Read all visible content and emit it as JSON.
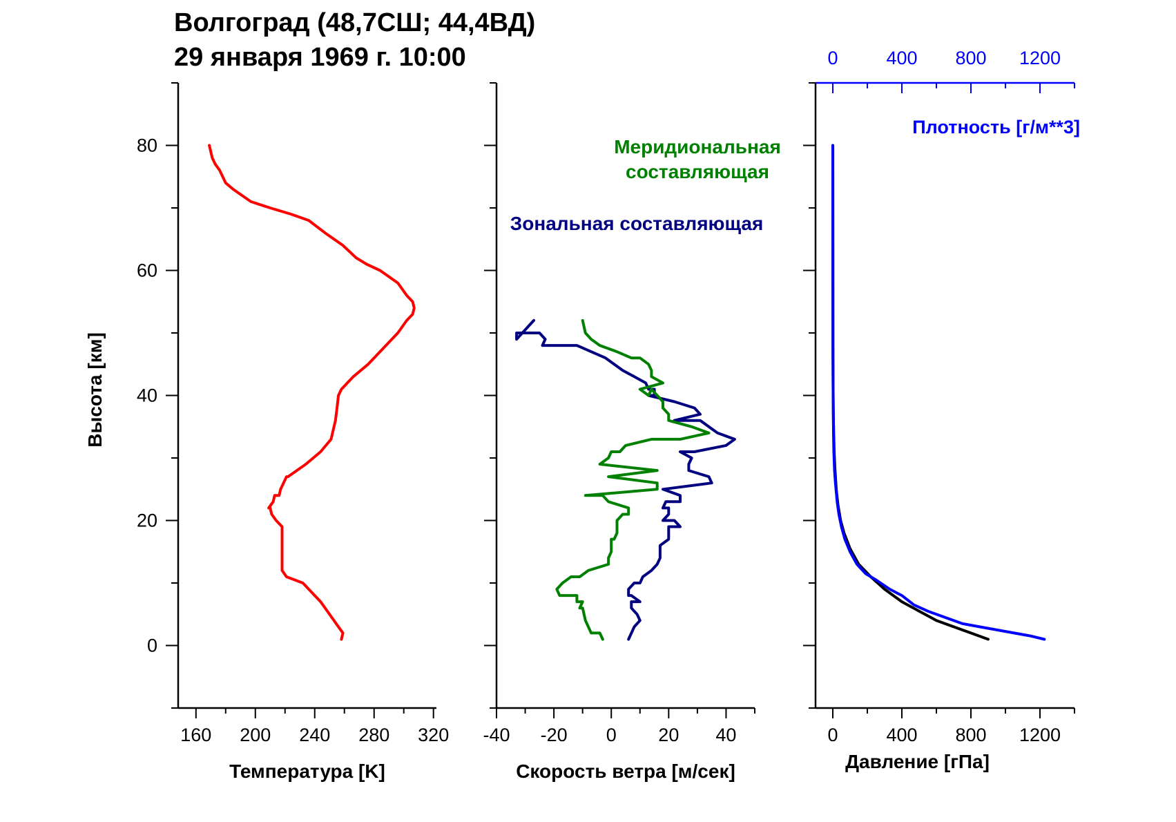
{
  "title": {
    "line1": "Волгоград (48,7СШ; 44,4ВД)",
    "line2": "29 января 1969 г. 10:00"
  },
  "colors": {
    "temperature": "#ff0000",
    "meridional": "#008000",
    "zonal": "#000080",
    "pressure": "#000000",
    "density": "#0000ff",
    "axes": "#000000"
  },
  "chart_data": [
    {
      "type": "line",
      "xlabel": "Температура [K]",
      "ylabel": "Высота [км]",
      "xlim": [
        148,
        322
      ],
      "ylim": [
        -10,
        90
      ],
      "xticks": [
        160,
        200,
        240,
        280,
        320
      ],
      "yticks": [
        0,
        20,
        40,
        60,
        80
      ],
      "grid": false,
      "series": [
        {
          "x": [
            258,
            259,
            256,
            244,
            232,
            221,
            218,
            218,
            218,
            218,
            214,
            211,
            210,
            209,
            212,
            213,
            216,
            217,
            219,
            221,
            222,
            234,
            244,
            251,
            254,
            255,
            256,
            258,
            262,
            266,
            271,
            276,
            280,
            288,
            296,
            302,
            306,
            307,
            306,
            302,
            296,
            284,
            275,
            268,
            259,
            247,
            236,
            224,
            210,
            197,
            191,
            185,
            180,
            178,
            176,
            173,
            171,
            169
          ],
          "y": [
            1,
            2,
            3,
            7,
            10,
            11,
            12,
            15,
            17,
            19,
            20,
            21,
            22,
            22,
            23,
            24,
            24,
            25,
            26,
            27,
            27,
            29,
            31,
            33,
            36,
            38,
            40,
            41,
            42,
            43,
            44,
            45,
            46,
            48,
            50,
            52,
            53,
            54,
            55,
            56,
            58,
            60,
            61,
            62,
            64,
            66,
            68,
            69,
            70,
            71,
            72,
            73,
            74,
            75,
            76,
            77,
            78,
            80
          ]
        }
      ]
    },
    {
      "type": "line",
      "xlabel": "Скорость ветра [м/сек]",
      "xlim": [
        -40,
        50
      ],
      "ylim": [
        -10,
        90
      ],
      "xticks": [
        -40,
        -20,
        0,
        20,
        40
      ],
      "yticks": [
        0,
        20,
        40,
        60,
        80
      ],
      "grid": false,
      "series": [
        {
          "name": "Зональная составляющая",
          "x": [
            6,
            8,
            10,
            9,
            7,
            7,
            10,
            7,
            6,
            6,
            8,
            10,
            11,
            14,
            16,
            17,
            17,
            17,
            20,
            20,
            20,
            24,
            22,
            18,
            20,
            20,
            18,
            19,
            24,
            24,
            18,
            35,
            34,
            27,
            27,
            28,
            24,
            29,
            40,
            43,
            37,
            34,
            31,
            22,
            31,
            29,
            22,
            13,
            15,
            15,
            15,
            13,
            12,
            8,
            4,
            -2,
            -12,
            -17,
            -24,
            -23,
            -25,
            -33,
            -33,
            -31,
            -27
          ],
          "y": [
            1,
            3,
            4,
            5,
            6,
            7,
            7,
            8,
            8,
            9,
            10,
            10,
            11,
            12,
            13,
            14,
            15,
            16,
            17,
            18,
            19,
            19,
            20,
            20,
            21,
            22,
            22,
            23,
            23,
            24,
            25,
            26,
            27,
            28,
            29,
            30,
            31,
            31,
            32,
            33,
            34,
            35,
            36,
            36,
            37,
            38,
            39,
            40,
            40,
            41,
            41,
            41,
            42,
            43,
            44,
            46,
            48,
            48,
            48,
            49,
            50,
            50,
            49,
            50,
            52
          ]
        },
        {
          "name": "Меридиональная составляющая",
          "x": [
            -3,
            -4,
            -7,
            -8,
            -9,
            -10,
            -11,
            -10,
            -12,
            -12,
            -18,
            -19,
            -17,
            -14,
            -11,
            -8,
            -1,
            -1,
            0,
            0,
            0,
            1,
            2,
            2,
            2,
            4,
            6,
            6,
            -1,
            -3,
            -9,
            16,
            16,
            -1,
            -1,
            16,
            -4,
            -1,
            0,
            0,
            3,
            5,
            14,
            24,
            34,
            28,
            20,
            20,
            18,
            18,
            16,
            14,
            13,
            10,
            18,
            14,
            14,
            13,
            10,
            7,
            2,
            -4,
            -7,
            -9,
            -10
          ],
          "y": [
            1,
            2,
            2,
            3,
            4,
            6,
            6,
            7,
            7,
            8,
            8,
            9,
            10,
            11,
            11,
            12,
            13,
            14,
            15,
            16,
            17,
            17,
            18,
            19,
            20,
            21,
            21,
            22,
            23,
            24,
            24,
            25,
            26,
            27,
            27,
            28,
            29,
            30,
            31,
            31,
            31,
            32,
            33,
            33,
            34,
            35,
            36,
            37,
            38,
            39,
            40,
            41,
            40,
            41,
            42,
            43,
            44,
            45,
            46,
            46,
            47,
            48,
            49,
            50,
            52
          ]
        }
      ]
    },
    {
      "type": "line",
      "xlabel": "Давление [гПа]",
      "x2label": "Плотность [г/м**3]",
      "xlim": [
        -100,
        1400
      ],
      "x2lim": [
        -100,
        1400
      ],
      "ylim": [
        -10,
        90
      ],
      "xticks": [
        0,
        400,
        800,
        1200
      ],
      "x2ticks": [
        0,
        400,
        800,
        1200
      ],
      "yticks": [
        0,
        20,
        40,
        60,
        80
      ],
      "grid": false,
      "series": [
        {
          "axis": "bottom",
          "x": [
            900,
            800,
            700,
            600,
            500,
            400,
            300,
            220,
            150,
            100,
            65,
            45,
            30,
            20,
            12,
            8,
            5,
            3,
            1.5,
            0.8,
            0.3,
            0.1
          ],
          "y": [
            1,
            2,
            3,
            4,
            5.5,
            7,
            9,
            11,
            13,
            15.5,
            18,
            20,
            22.5,
            25,
            28.5,
            31,
            34,
            37,
            42,
            46,
            55,
            80
          ]
        },
        {
          "axis": "top",
          "x": [
            1225,
            1150,
            1050,
            950,
            850,
            750,
            650,
            550,
            470,
            400,
            330,
            250,
            190,
            140,
            100,
            70,
            50,
            35,
            25,
            15,
            10,
            6,
            4,
            2,
            1,
            0.3
          ],
          "y": [
            1,
            1.5,
            2,
            2.5,
            3,
            3.5,
            4.5,
            5.5,
            6.5,
            8,
            9,
            10.5,
            11.5,
            13,
            15,
            17,
            19,
            21,
            23,
            26,
            28,
            31,
            34,
            40,
            48,
            80
          ]
        }
      ]
    }
  ]
}
